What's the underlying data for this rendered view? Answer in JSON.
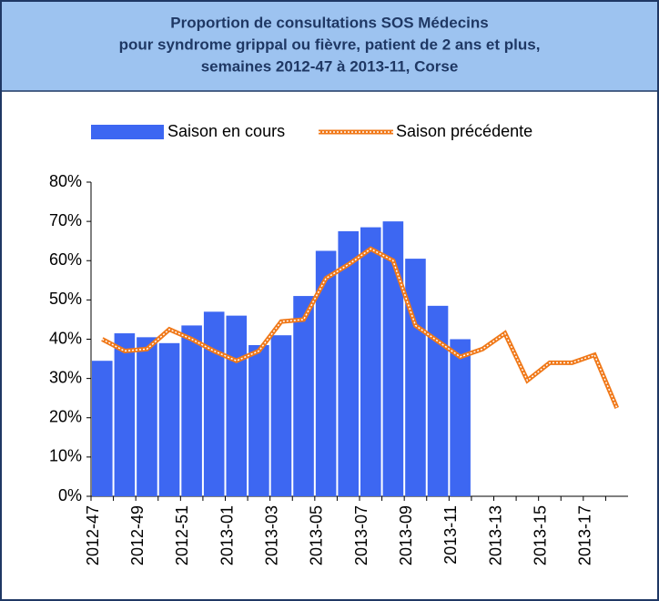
{
  "chart_data": {
    "type": "bar-line",
    "title": [
      "Proportion de consultations SOS Médecins",
      "pour syndrome grippal ou fièvre, patient de 2 ans et plus,",
      "semaines 2012-47 à 2013-11, Corse"
    ],
    "categories": [
      "2012-47",
      null,
      "2012-49",
      null,
      "2012-51",
      null,
      "2013-01",
      null,
      "2013-03",
      null,
      "2013-05",
      null,
      "2013-07",
      null,
      "2013-09",
      null,
      "2013-11",
      null,
      "2013-13",
      null,
      "2013-15",
      null,
      "2013-17",
      null
    ],
    "series": [
      {
        "name": "Saison en cours",
        "color": "#3d67f2",
        "type": "bar",
        "values": [
          34.5,
          41.5,
          40.5,
          39,
          43.5,
          47,
          46,
          38.5,
          41,
          51,
          62.5,
          67.5,
          68.5,
          70,
          60.5,
          48.5,
          40,
          null,
          null,
          null,
          null,
          null,
          null,
          null
        ]
      },
      {
        "name": "Saison précédente",
        "color": "#f07818",
        "type": "line",
        "values": [
          40,
          37,
          37.5,
          42.5,
          40,
          37,
          34.5,
          37,
          44.5,
          45,
          55.5,
          59,
          63,
          60,
          43.5,
          39.5,
          35.5,
          37.5,
          41.5,
          29.5,
          34,
          34,
          36,
          22.5
        ]
      }
    ],
    "ylim": [
      0,
      80
    ],
    "yticks": [
      {
        "value": 0,
        "label": "0%"
      },
      {
        "value": 10,
        "label": "10%"
      },
      {
        "value": 20,
        "label": "20%"
      },
      {
        "value": 30,
        "label": "30%"
      },
      {
        "value": 40,
        "label": "40%"
      },
      {
        "value": 50,
        "label": "50%"
      },
      {
        "value": 60,
        "label": "60%"
      },
      {
        "value": 70,
        "label": "70%"
      },
      {
        "value": 80,
        "label": "80%"
      }
    ],
    "legend": "top"
  }
}
